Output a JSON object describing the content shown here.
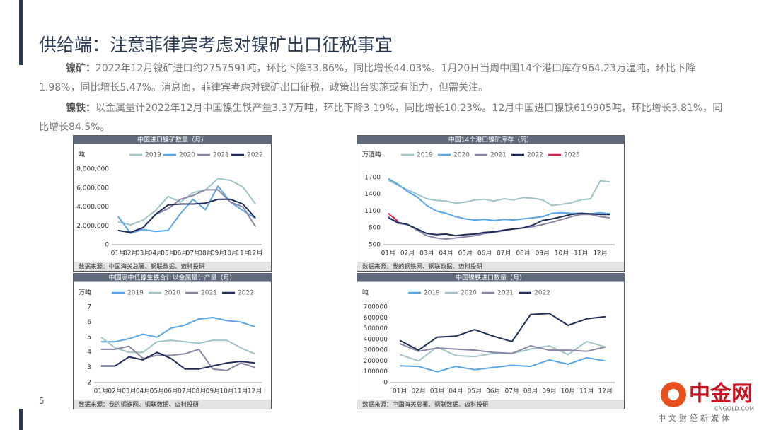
{
  "header": {
    "title": "供给端：注意菲律宾考虑对镍矿出口征税事宜"
  },
  "paragraphs": [
    {
      "label": "镍矿：",
      "text": "2022年12月镍矿进口约2757591吨，环比下降33.86%，同比增长44.03%。1月20日当周中国14个港口库存964.23万湿吨，环比下降1.98%，同比增长5.47%。消息面，菲律宾考虑对镍矿出口征税，政策出台实施或有阻力，但需关注。"
    },
    {
      "label": "镍铁：",
      "text": "以金属量计2022年12月中国镍生铁产量3.37万吨，环比下降3.19%，同比增长10.23%。12月中国进口镍铁619905吨，环比增长3.81%，同比增长84.5%。"
    }
  ],
  "page_number": "5",
  "logo": {
    "name": "中金网",
    "site": "CNGOLD.COM",
    "slogan": "中文财经新媒体"
  },
  "chart_data": [
    {
      "type": "line",
      "title": "中国进口镍矿数量（月）",
      "unit": "吨",
      "source": "数据来源：中国海关总署、钢联数据、迈科投研",
      "categories": [
        "01月",
        "02月",
        "03月",
        "04月",
        "05月",
        "06月",
        "07月",
        "08月",
        "09月",
        "10月",
        "11月",
        "12月"
      ],
      "ylim": [
        0,
        8000000
      ],
      "yticks": [
        0,
        {
          "value": 2000000,
          "label": "2,000,000"
        },
        {
          "value": 4000000,
          "label": "4,000,000"
        },
        {
          "value": 6000000,
          "label": "6,000,000"
        },
        {
          "value": 8000000,
          "label": "8,000,000"
        }
      ],
      "series": [
        {
          "name": "2019",
          "color": "#9fc5c9",
          "values": [
            2400000,
            2100000,
            2600000,
            3600000,
            5100000,
            4500000,
            5500000,
            5800000,
            7000000,
            6800000,
            6100000,
            4300000
          ]
        },
        {
          "name": "2020",
          "color": "#5aa6e6",
          "values": [
            3000000,
            1200000,
            1600000,
            1400000,
            1500000,
            3300000,
            4800000,
            3700000,
            6200000,
            4500000,
            3600000,
            2800000
          ]
        },
        {
          "name": "2021",
          "color": "#8b86a8",
          "values": [
            1500000,
            1300000,
            1800000,
            3200000,
            3800000,
            4800000,
            5200000,
            5800000,
            5800000,
            4500000,
            4000000,
            1900000
          ]
        },
        {
          "name": "2022",
          "color": "#1f2d5a",
          "values": [
            1500000,
            1300000,
            1800000,
            3200000,
            4200000,
            4300000,
            4300000,
            4400000,
            4800000,
            4800000,
            4300000,
            2800000
          ]
        }
      ]
    },
    {
      "type": "line",
      "title": "中国14个港口镍矿库存（周）",
      "unit": "万湿吨",
      "source": "数据来源：我的钢铁网、钢联数据、迈科投研",
      "categories": [
        "01月",
        null,
        "02月",
        null,
        "03月",
        null,
        "04月",
        null,
        "05月",
        null,
        "06月",
        null,
        "07月",
        null,
        "08月",
        null,
        "09月",
        null,
        "10月",
        null,
        "11月",
        null,
        "12月",
        null
      ],
      "ylim": [
        500,
        1850
      ],
      "yticks": [
        500,
        800,
        1100,
        1400,
        1700
      ],
      "series": [
        {
          "name": "2019",
          "color": "#9fc5c9",
          "values": [
            1650,
            1560,
            1480,
            1400,
            1320,
            1290,
            1280,
            1240,
            1260,
            1300,
            1310,
            1280,
            1320,
            1300,
            1340,
            1330,
            1300,
            1200,
            1220,
            1250,
            1300,
            1320,
            1640,
            1620
          ]
        },
        {
          "name": "2020",
          "color": "#5aa6e6",
          "values": [
            1680,
            1580,
            1450,
            1350,
            1200,
            1100,
            1060,
            1000,
            960,
            940,
            950,
            930,
            950,
            940,
            960,
            980,
            1000,
            1060,
            1070,
            1060,
            1060,
            1050,
            1070,
            1050
          ]
        },
        {
          "name": "2021",
          "color": "#8b86a8",
          "values": [
            1000,
            880,
            860,
            760,
            660,
            620,
            600,
            620,
            640,
            660,
            700,
            720,
            750,
            780,
            800,
            820,
            860,
            900,
            950,
            1000,
            1040,
            1040,
            1000,
            980
          ]
        },
        {
          "name": "2022",
          "color": "#1f2d5a",
          "values": [
            980,
            900,
            860,
            780,
            700,
            680,
            690,
            660,
            680,
            690,
            720,
            730,
            760,
            780,
            800,
            850,
            930,
            960,
            1000,
            1040,
            1060,
            1050,
            1040,
            1040
          ]
        },
        {
          "name": "2023",
          "color": "#d6234a",
          "values": [
            1060,
            920,
            null,
            null,
            null,
            null,
            null,
            null,
            null,
            null,
            null,
            null,
            null,
            null,
            null,
            null,
            null,
            null,
            null,
            null,
            null,
            null,
            null,
            null
          ]
        }
      ]
    },
    {
      "type": "line",
      "title": "中国高中低镍生铁合计以金属量计产量（月）",
      "unit": "万吨",
      "source": "数据来源：我的钢铁网、钢联数据、迈科投研",
      "categories": [
        "01月",
        "02月",
        "03月",
        "04月",
        "05月",
        "06月",
        "07月",
        "08月",
        "09月",
        "10月",
        "11月",
        "12月"
      ],
      "ylim": [
        2,
        7
      ],
      "yticks": [
        2,
        3,
        4,
        5,
        6,
        7
      ],
      "series": [
        {
          "name": "2019",
          "color": "#5aa6e6",
          "values": [
            4.7,
            4.7,
            4.9,
            5.2,
            5.0,
            5.6,
            5.8,
            6.2,
            6.3,
            6.1,
            6.0,
            5.7
          ]
        },
        {
          "name": "2020",
          "color": "#9fc5c9",
          "values": [
            5.0,
            4.3,
            4.0,
            4.0,
            4.7,
            4.8,
            4.7,
            4.6,
            4.8,
            4.8,
            4.3,
            3.9
          ]
        },
        {
          "name": "2021",
          "color": "#8b86a8",
          "values": [
            4.2,
            4.2,
            4.4,
            3.6,
            3.8,
            3.8,
            3.9,
            4.2,
            2.9,
            2.8,
            3.3,
            3.0
          ]
        },
        {
          "name": "2022",
          "color": "#1f2d5a",
          "values": [
            3.1,
            3.1,
            3.7,
            3.5,
            4.0,
            3.6,
            2.9,
            2.9,
            3.1,
            3.3,
            3.4,
            3.3
          ]
        }
      ]
    },
    {
      "type": "line",
      "title": "中国镍铁进口数量（月）",
      "unit": "吨",
      "source": "数据来源：中国海关总署、钢联数据、迈科投研",
      "categories": [
        "01月",
        "02月",
        "03月",
        "04月",
        "05月",
        "06月",
        "07月",
        "08月",
        "09月",
        "10月",
        "11月",
        "12月"
      ],
      "ylim": [
        0,
        700000
      ],
      "yticks": [
        0,
        {
          "value": 100000,
          "label": "100000"
        },
        {
          "value": 200000,
          "label": "200000"
        },
        {
          "value": 300000,
          "label": "300000"
        },
        {
          "value": 400000,
          "label": "400000"
        },
        {
          "value": 500000,
          "label": "500000"
        },
        {
          "value": 600000,
          "label": "600000"
        },
        {
          "value": 700000,
          "label": "700000"
        }
      ],
      "series": [
        {
          "name": "2019",
          "color": "#5aa6e6",
          "values": [
            155000,
            150000,
            100000,
            150000,
            120000,
            140000,
            160000,
            150000,
            210000,
            170000,
            230000,
            200000
          ]
        },
        {
          "name": "2020",
          "color": "#9fc5c9",
          "values": [
            260000,
            200000,
            330000,
            250000,
            240000,
            270000,
            270000,
            310000,
            340000,
            260000,
            380000,
            330000
          ]
        },
        {
          "name": "2021",
          "color": "#8b86a8",
          "values": [
            360000,
            290000,
            320000,
            310000,
            300000,
            280000,
            270000,
            340000,
            300000,
            300000,
            290000,
            330000
          ]
        },
        {
          "name": "2022",
          "color": "#1f2d5a",
          "values": [
            390000,
            300000,
            420000,
            430000,
            490000,
            430000,
            380000,
            630000,
            640000,
            530000,
            590000,
            610000
          ]
        }
      ]
    }
  ]
}
